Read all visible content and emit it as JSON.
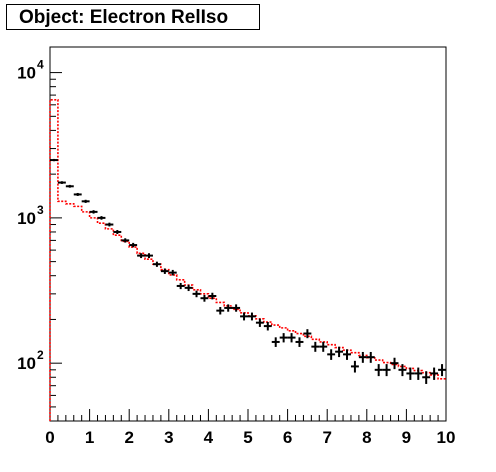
{
  "title": "Object: Electron RelIso",
  "chart_data": {
    "type": "histogram",
    "title": "Object: Electron RelIso",
    "xlabel": "",
    "ylabel": "",
    "xlim": [
      0,
      10
    ],
    "ylim": [
      40,
      15000
    ],
    "ylog": true,
    "grid": false,
    "x_ticks": [
      0,
      1,
      2,
      3,
      4,
      5,
      6,
      7,
      8,
      9,
      10
    ],
    "y_ticks": [
      {
        "base": "10",
        "exp": "2",
        "value": 100
      },
      {
        "base": "10",
        "exp": "3",
        "value": 1000
      },
      {
        "base": "10",
        "exp": "4",
        "value": 10000
      }
    ],
    "series": [
      {
        "kind": "data-points",
        "color": "#000000",
        "bin_width": 0.2,
        "x": [
          0.1,
          0.3,
          0.5,
          0.7,
          0.9,
          1.1,
          1.3,
          1.5,
          1.7,
          1.9,
          2.1,
          2.3,
          2.5,
          2.7,
          2.9,
          3.1,
          3.3,
          3.5,
          3.7,
          3.9,
          4.1,
          4.3,
          4.5,
          4.7,
          4.9,
          5.1,
          5.3,
          5.5,
          5.7,
          5.9,
          6.1,
          6.3,
          6.5,
          6.7,
          6.9,
          7.1,
          7.3,
          7.5,
          7.7,
          7.9,
          8.1,
          8.3,
          8.5,
          8.7,
          8.9,
          9.1,
          9.3,
          9.5,
          9.7,
          9.9
        ],
        "y": [
          2500,
          1750,
          1650,
          1450,
          1300,
          1100,
          1000,
          900,
          800,
          700,
          650,
          550,
          550,
          480,
          430,
          420,
          340,
          330,
          300,
          280,
          290,
          230,
          240,
          240,
          210,
          210,
          190,
          180,
          140,
          150,
          150,
          140,
          160,
          130,
          130,
          115,
          120,
          115,
          95,
          110,
          110,
          90,
          90,
          100,
          90,
          85,
          85,
          80,
          85,
          90
        ]
      },
      {
        "kind": "histogram-step",
        "color": "#ff0000",
        "bin_width": 0.2,
        "x": [
          0.1,
          0.3,
          0.5,
          0.7,
          0.9,
          1.1,
          1.3,
          1.5,
          1.7,
          1.9,
          2.1,
          2.3,
          2.5,
          2.7,
          2.9,
          3.1,
          3.3,
          3.5,
          3.7,
          3.9,
          4.1,
          4.3,
          4.5,
          4.7,
          4.9,
          5.1,
          5.3,
          5.5,
          5.7,
          5.9,
          6.1,
          6.3,
          6.5,
          6.7,
          6.9,
          7.1,
          7.3,
          7.5,
          7.7,
          7.9,
          8.1,
          8.3,
          8.5,
          8.7,
          8.9,
          9.1,
          9.3,
          9.5,
          9.7,
          9.9
        ],
        "y": [
          6500,
          1300,
          1250,
          1200,
          1100,
          1000,
          920,
          840,
          760,
          690,
          630,
          570,
          520,
          480,
          440,
          405,
          375,
          345,
          320,
          300,
          280,
          262,
          248,
          235,
          222,
          212,
          202,
          192,
          183,
          175,
          167,
          160,
          153,
          146,
          140,
          134,
          128,
          123,
          118,
          113,
          109,
          105,
          101,
          98,
          95,
          92,
          89,
          86,
          83,
          78
        ]
      }
    ]
  }
}
